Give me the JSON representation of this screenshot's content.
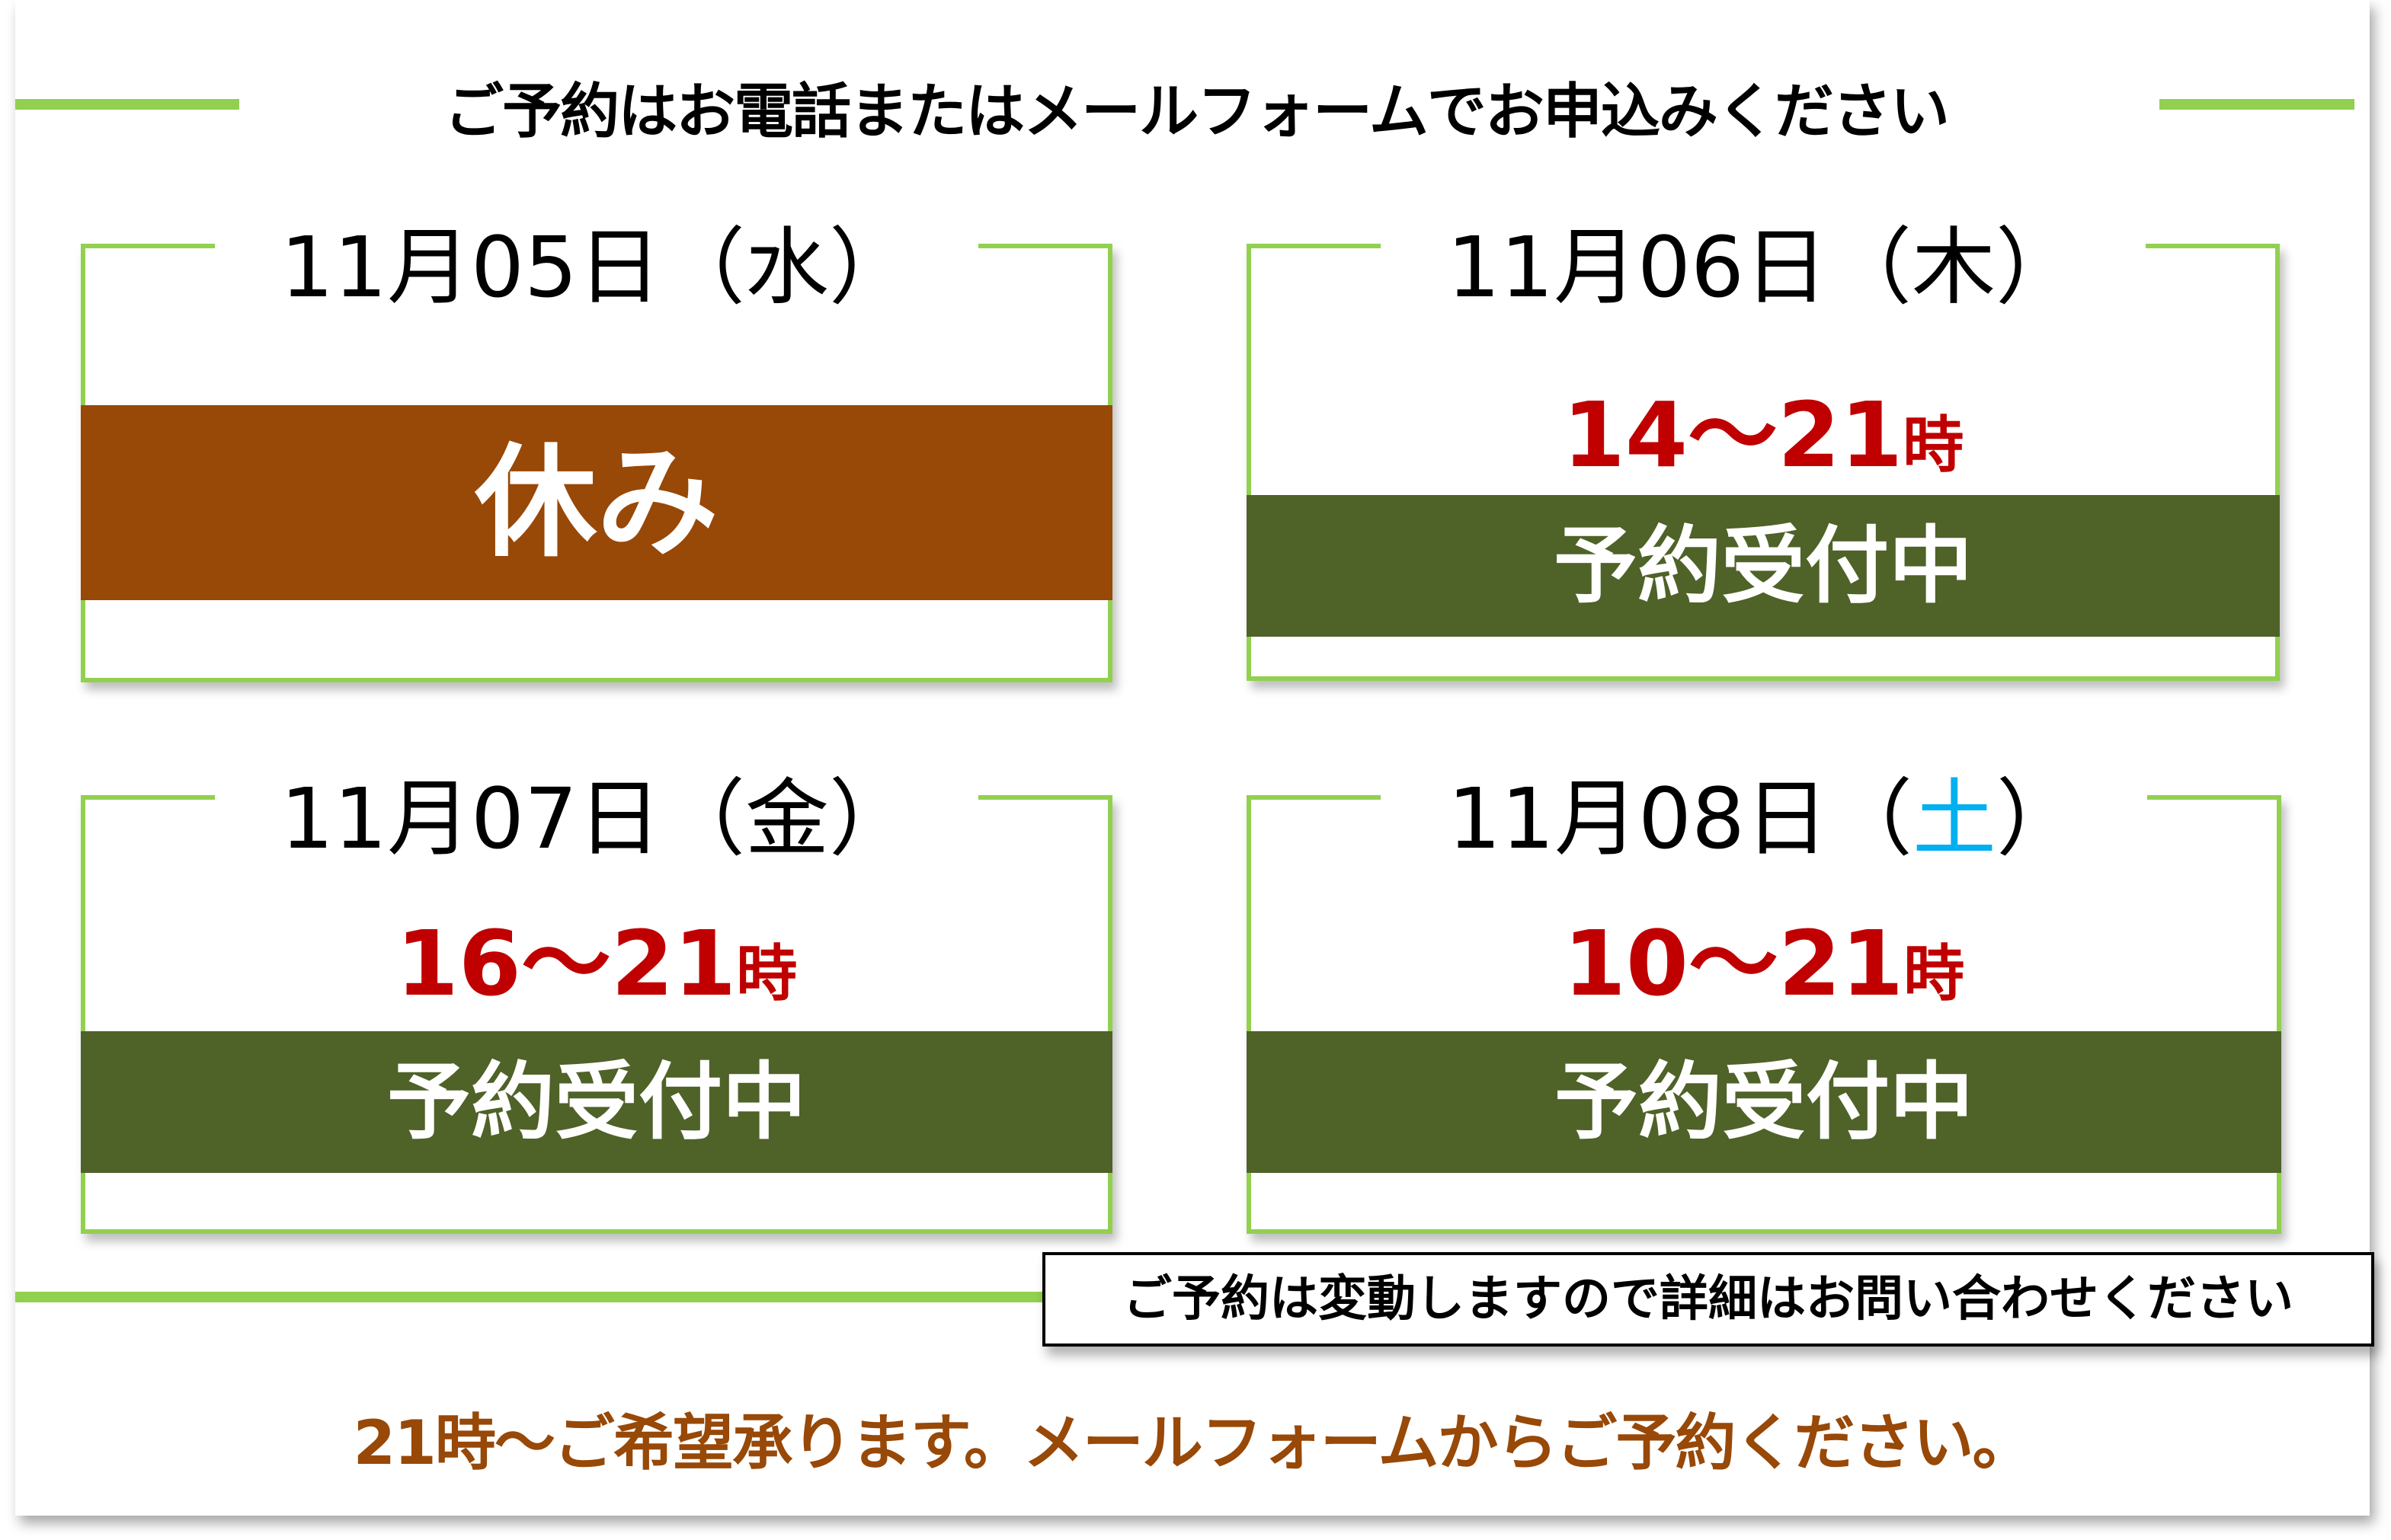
{
  "header": {
    "title": "ご予約はお電話またはメールフォームでお申込みください"
  },
  "colors": {
    "accent_green": "#92d050",
    "closed": "#984807",
    "open": "#4f6228",
    "time": "#c00000",
    "saturday": "#00b0f0"
  },
  "days": [
    {
      "date": "11月05日",
      "weekday_open": "（",
      "weekday": "水",
      "weekday_close": "）",
      "status": "休み"
    },
    {
      "date": "11月06日",
      "weekday_open": "（",
      "weekday": "木",
      "weekday_close": "）",
      "time": "14～21",
      "time_unit": "時",
      "status": "予約受付中"
    },
    {
      "date": "11月07日",
      "weekday_open": "（",
      "weekday": "金",
      "weekday_close": "）",
      "time": "16～21",
      "time_unit": "時",
      "status": "予約受付中"
    },
    {
      "date": "11月08日",
      "weekday_open": "（",
      "weekday": "土",
      "weekday_close": "）",
      "time": "10～21",
      "time_unit": "時",
      "status": "予約受付中"
    }
  ],
  "note": "ご予約は変動しますので詳細はお問い合わせください",
  "footer": "21時～ご希望承ります。メールフォームからご予約ください。"
}
